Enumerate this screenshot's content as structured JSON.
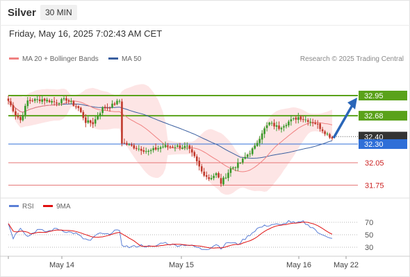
{
  "header": {
    "symbol": "Silver",
    "timeframe": "30 MIN",
    "datetime": "Friday, May 16, 2025 7:02:43 AM CET"
  },
  "legend": {
    "ma20_label": "MA 20 + Bollinger Bands",
    "ma50_label": "MA 50",
    "copyright": "Research © 2025 Trading Central",
    "rsi_label": "RSI",
    "ma9_label": "9MA"
  },
  "colors": {
    "up": "#3a9a2a",
    "down": "#c0392b",
    "ma20": "#f08080",
    "bollinger_fill": "#fde0e0",
    "ma50": "#3a5fa0",
    "resistance": "#5aa21a",
    "support": "#e57373",
    "pivot": "#2f6fd8",
    "arrow": "#2a66b8",
    "last_price_bg": "#333333",
    "rsi": "#5b7fd6",
    "rsi_ma9": "#e01010"
  },
  "chart_data": [
    {
      "type": "candlestick",
      "title": "Silver",
      "timeframe": "30 MIN",
      "x_ticks": [
        "May 14",
        "May 15",
        "May 16",
        "May 22"
      ],
      "ylim": [
        31.6,
        33.0
      ],
      "price_levels": [
        {
          "value": 32.95,
          "label": "32.95",
          "role": "resistance"
        },
        {
          "value": 32.68,
          "label": "32.68",
          "role": "resistance"
        },
        {
          "value": 32.4,
          "label": "32.40",
          "role": "last-price"
        },
        {
          "value": 32.3,
          "label": "32.30",
          "role": "pivot"
        },
        {
          "value": 32.05,
          "label": "32.05",
          "role": "support"
        },
        {
          "value": 31.75,
          "label": "31.75",
          "role": "support"
        }
      ],
      "anchors": [
        [
          0,
          32.88
        ],
        [
          3,
          32.7
        ],
        [
          5,
          32.62
        ],
        [
          8,
          32.88
        ],
        [
          14,
          32.9
        ],
        [
          20,
          32.86
        ],
        [
          24,
          32.9
        ],
        [
          29,
          32.78
        ],
        [
          32,
          32.6
        ],
        [
          35,
          32.58
        ],
        [
          39,
          32.78
        ],
        [
          42,
          32.8
        ],
        [
          46,
          32.88
        ],
        [
          47,
          32.32
        ],
        [
          52,
          32.26
        ],
        [
          58,
          32.2
        ],
        [
          64,
          32.27
        ],
        [
          69,
          32.27
        ],
        [
          74,
          32.26
        ],
        [
          77,
          32.12
        ],
        [
          80,
          31.93
        ],
        [
          83,
          31.84
        ],
        [
          86,
          31.9
        ],
        [
          88,
          31.78
        ],
        [
          92,
          31.97
        ],
        [
          96,
          32.05
        ],
        [
          99,
          32.16
        ],
        [
          102,
          32.26
        ],
        [
          105,
          32.46
        ],
        [
          108,
          32.58
        ],
        [
          112,
          32.52
        ],
        [
          116,
          32.6
        ],
        [
          120,
          32.66
        ],
        [
          124,
          32.62
        ],
        [
          127,
          32.58
        ],
        [
          131,
          32.46
        ],
        [
          134,
          32.38
        ]
      ],
      "forecast_arrow": {
        "from": 32.4,
        "to": 32.95
      }
    },
    {
      "type": "line",
      "title": "RSI",
      "series": [
        {
          "name": "RSI"
        },
        {
          "name": "9MA"
        }
      ],
      "y_ticks": [
        70,
        50,
        30
      ],
      "ylim": [
        20,
        80
      ],
      "rsi_anchors": [
        [
          0,
          68
        ],
        [
          2,
          45
        ],
        [
          5,
          62
        ],
        [
          8,
          47
        ],
        [
          12,
          58
        ],
        [
          16,
          55
        ],
        [
          20,
          60
        ],
        [
          24,
          55
        ],
        [
          28,
          52
        ],
        [
          31,
          44
        ],
        [
          34,
          40
        ],
        [
          37,
          52
        ],
        [
          41,
          50
        ],
        [
          44,
          57
        ],
        [
          46,
          55
        ],
        [
          47,
          34
        ],
        [
          50,
          30
        ],
        [
          55,
          33
        ],
        [
          60,
          30
        ],
        [
          64,
          38
        ],
        [
          69,
          33
        ],
        [
          74,
          34
        ],
        [
          77,
          31
        ],
        [
          80,
          27
        ],
        [
          83,
          28
        ],
        [
          86,
          35
        ],
        [
          88,
          29
        ],
        [
          91,
          38
        ],
        [
          95,
          35
        ],
        [
          99,
          47
        ],
        [
          103,
          60
        ],
        [
          106,
          64
        ],
        [
          110,
          67
        ],
        [
          113,
          65
        ],
        [
          116,
          72
        ],
        [
          119,
          68
        ],
        [
          122,
          71
        ],
        [
          124,
          65
        ],
        [
          126,
          62
        ],
        [
          129,
          50
        ],
        [
          131,
          49
        ],
        [
          134,
          45
        ]
      ]
    }
  ]
}
